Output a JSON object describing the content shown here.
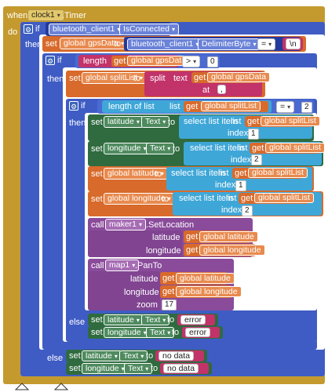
{
  "event": {
    "when": "when",
    "component": "clock1",
    "event_name": ".Timer",
    "do": "do"
  },
  "if1": {
    "if": "if",
    "component": "bluetooth_client1",
    "property": "IsConnected",
    "then": "then"
  },
  "set_gps": {
    "set": "set",
    "var": "global gpsData",
    "to": "to",
    "component": "bluetooth_client1",
    "method": "DelimiterByte",
    "op": "=",
    "str": "\\n"
  },
  "if2": {
    "if": "if",
    "length": "length",
    "get": "get",
    "var": "global gpsData",
    "op": ">",
    "num": "0",
    "then": "then"
  },
  "set_split": {
    "set": "set",
    "var": "global splitList",
    "to": "to",
    "split": "split",
    "text": "text",
    "get": "get",
    "get_var": "global gpsData",
    "at": "at",
    "at_val": ","
  },
  "if3": {
    "if": "if",
    "length_of_list": "length of list",
    "list": "list",
    "get": "get",
    "var": "global splitList",
    "op": "=",
    "num": "2",
    "then": "then"
  },
  "set_lat_text": {
    "set": "set",
    "comp": "latitude",
    "prop": "Text",
    "to": "to",
    "select": "select list item",
    "list": "list",
    "get": "get",
    "var": "global splitList",
    "index": "index",
    "idx": "1"
  },
  "set_lon_text": {
    "set": "set",
    "comp": "longitude",
    "prop": "Text",
    "to": "to",
    "select": "select list item",
    "list": "list",
    "get": "get",
    "var": "global splitList",
    "index": "index",
    "idx": "2"
  },
  "set_glat": {
    "set": "set",
    "var": "global latitude",
    "to": "to",
    "select": "select list item",
    "list": "list",
    "get": "get",
    "get_var": "global splitList",
    "index": "index",
    "idx": "1"
  },
  "set_glon": {
    "set": "set",
    "var": "global longitude",
    "to": "to",
    "select": "select list item",
    "list": "list",
    "get": "get",
    "get_var": "global splitList",
    "index": "index",
    "idx": "2"
  },
  "call_marker": {
    "call": "call",
    "comp": "maker1",
    "method": ".SetLocation",
    "latitude": "latitude",
    "longitude": "longitude",
    "get": "get",
    "lat_var": "global latitude",
    "lon_var": "global longitude"
  },
  "call_map": {
    "call": "call",
    "comp": "map1",
    "method": ".PanTo",
    "latitude": "latitude",
    "longitude": "longitude",
    "zoom": "zoom",
    "get": "get",
    "lat_var": "global latitude",
    "lon_var": "global longitude",
    "zoom_val": "17"
  },
  "else3": {
    "else": "else",
    "set": "set",
    "lat": "latitude",
    "lon": "longitude",
    "prop": "Text",
    "to": "to",
    "err": "error"
  },
  "else1": {
    "else": "else",
    "set": "set",
    "lat": "latitude",
    "lon": "longitude",
    "prop": "Text",
    "to": "to",
    "nodata": "no data"
  },
  "icons": {
    "gear": "gear-icon",
    "dropdown": "chevron-down-icon",
    "collapse": "collapse-triangle-icon"
  }
}
